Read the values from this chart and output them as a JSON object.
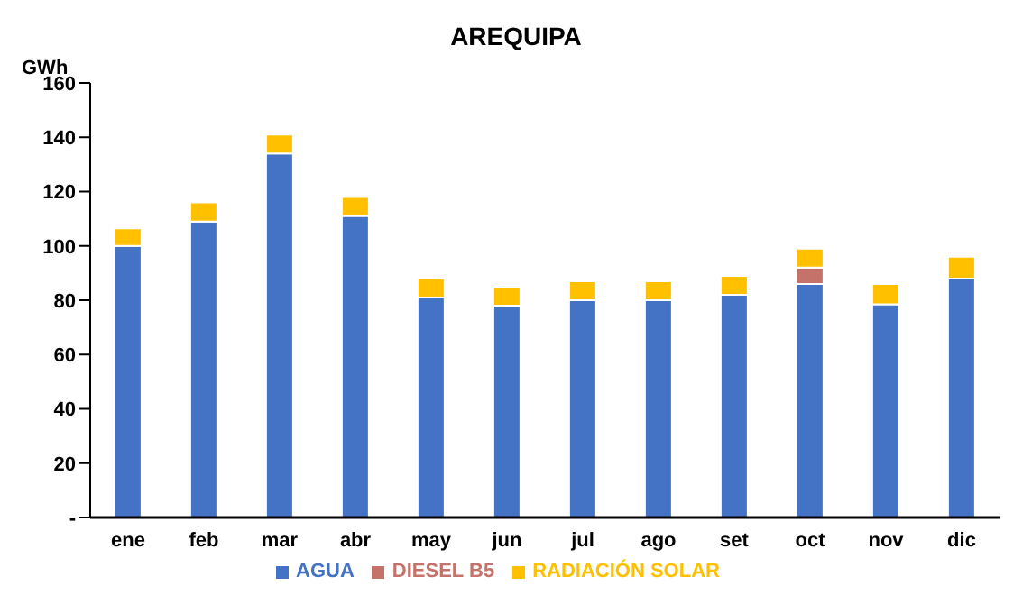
{
  "chart_data": {
    "type": "bar",
    "title": "AREQUIPA",
    "ylabel": "GWh",
    "stacked": true,
    "categories": [
      "ene",
      "feb",
      "mar",
      "abr",
      "may",
      "jun",
      "jul",
      "ago",
      "set",
      "oct",
      "nov",
      "dic"
    ],
    "series": [
      {
        "name": "AGUA",
        "color": "#4472c4",
        "values": [
          100,
          109,
          134,
          111,
          81,
          78,
          80,
          80,
          82,
          86,
          78.5,
          88
        ]
      },
      {
        "name": "DIESEL B5",
        "color": "#c5726b",
        "values": [
          0,
          0,
          0,
          0,
          0,
          0,
          0,
          0,
          0,
          6,
          0,
          0
        ]
      },
      {
        "name": "RADIACIÓN SOLAR",
        "color": "#ffc000",
        "values": [
          6.5,
          7,
          7,
          7,
          7,
          7,
          7,
          7,
          7,
          7,
          7.5,
          8
        ]
      }
    ],
    "ylim": [
      0,
      160
    ],
    "yticks": [
      {
        "value": 0,
        "label": "-"
      },
      20,
      40,
      60,
      80,
      100,
      120,
      140,
      160
    ],
    "grid": false,
    "legend": "bottom"
  }
}
